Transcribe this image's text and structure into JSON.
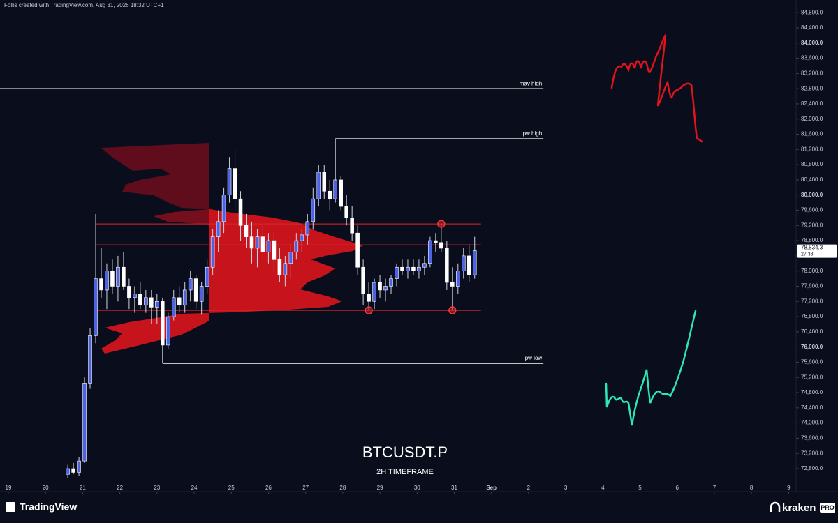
{
  "header": {
    "text": "Follis created with TradingView.com, Aug 31, 2026 18:32 UTC+1"
  },
  "footer": {
    "brand": "TradingView",
    "broker": "kraken",
    "broker_tag": "PRO"
  },
  "chart_data": {
    "type": "candlestick",
    "title": "BTCUSDT.P",
    "subtitle": "2H TIMEFRAME",
    "up_color": "#4c63e6",
    "down_color": "#ffffff",
    "xlim": [
      18.775,
      40.2
    ],
    "ylim": [
      72470,
      84950
    ],
    "x": [
      20.6,
      20.75,
      20.9,
      21.05,
      21.2,
      21.35,
      21.5,
      21.65,
      21.8,
      21.95,
      22.1,
      22.25,
      22.4,
      22.55,
      22.7,
      22.85,
      23.0,
      23.15,
      23.3,
      23.45,
      23.6,
      23.75,
      23.9,
      24.05,
      24.2,
      24.35,
      24.5,
      24.65,
      24.8,
      24.95,
      25.1,
      25.25,
      25.4,
      25.55,
      25.7,
      25.85,
      26.0,
      26.15,
      26.3,
      26.45,
      26.6,
      26.75,
      26.9,
      27.05,
      27.2,
      27.35,
      27.5,
      27.65,
      27.8,
      27.95,
      28.1,
      28.25,
      28.4,
      28.55,
      28.7,
      28.85,
      29.0,
      29.15,
      29.3,
      29.45,
      29.6,
      29.75,
      29.9,
      30.05,
      30.2,
      30.35,
      30.5,
      30.65,
      30.8,
      30.95,
      31.1,
      31.25,
      31.4,
      31.55
    ],
    "open": [
      72650,
      72800,
      72700,
      73000,
      75050,
      76300,
      77800,
      77500,
      78000,
      77600,
      78100,
      77600,
      77300,
      77400,
      77100,
      77300,
      77050,
      77200,
      76050,
      76800,
      77300,
      77100,
      77500,
      77800,
      77200,
      77600,
      78100,
      78900,
      79300,
      80000,
      80700,
      79900,
      79200,
      78900,
      78600,
      78900,
      78500,
      78800,
      78300,
      77900,
      78200,
      78500,
      78800,
      78950,
      79300,
      79900,
      80600,
      80100,
      79900,
      80400,
      79700,
      79400,
      79000,
      78100,
      77400,
      77200,
      77700,
      77500,
      77600,
      77800,
      78100,
      78000,
      78100,
      78000,
      78100,
      78200,
      78800,
      78750,
      78600,
      77700,
      77600,
      78000,
      78400,
      77900
    ],
    "high": [
      72900,
      72950,
      73100,
      75200,
      76500,
      79500,
      78600,
      78200,
      78300,
      78400,
      78500,
      77800,
      77600,
      77700,
      77500,
      77500,
      77400,
      77300,
      76900,
      77500,
      77600,
      77700,
      78000,
      77900,
      77700,
      78300,
      79100,
      79600,
      80200,
      81000,
      81200,
      80100,
      79500,
      79300,
      79100,
      79200,
      79000,
      79000,
      78600,
      78400,
      78700,
      79000,
      79100,
      79500,
      80200,
      80800,
      80800,
      80400,
      81480,
      80500,
      80000,
      79700,
      79200,
      78300,
      77700,
      77800,
      77900,
      77800,
      77900,
      78200,
      78300,
      78300,
      78300,
      78300,
      78400,
      78900,
      79000,
      79240,
      78800,
      78100,
      78200,
      78600,
      78700,
      78900
    ],
    "low": [
      72550,
      72650,
      72600,
      72950,
      74900,
      76100,
      77300,
      77000,
      77400,
      77200,
      77500,
      77000,
      76900,
      77000,
      76900,
      76600,
      76600,
      75570,
      75950,
      76700,
      76900,
      76900,
      77200,
      77000,
      76850,
      77400,
      77900,
      78500,
      79000,
      79800,
      79600,
      78800,
      78600,
      78200,
      78100,
      78300,
      78200,
      78000,
      77700,
      77600,
      77800,
      78300,
      78500,
      78700,
      79100,
      79700,
      79900,
      79600,
      79800,
      79600,
      79200,
      78800,
      77900,
      77100,
      76960,
      77000,
      77300,
      77200,
      77400,
      77600,
      77900,
      77800,
      77900,
      77800,
      77900,
      78100,
      78500,
      78500,
      77500,
      76960,
      77400,
      77800,
      77700,
      77800
    ],
    "close": [
      72800,
      72700,
      73000,
      75050,
      76300,
      77800,
      77500,
      78000,
      77600,
      78100,
      77600,
      77300,
      77400,
      77100,
      77300,
      77050,
      77200,
      76050,
      76800,
      77300,
      77100,
      77500,
      77800,
      77200,
      77600,
      78100,
      78900,
      79300,
      80000,
      80700,
      79900,
      79200,
      78900,
      78600,
      78900,
      78500,
      78800,
      78300,
      77900,
      78200,
      78500,
      78800,
      78950,
      79300,
      79900,
      80600,
      80100,
      79900,
      80400,
      79700,
      79400,
      79000,
      78100,
      77400,
      77200,
      77700,
      77500,
      77600,
      77800,
      78100,
      78000,
      78100,
      78000,
      78100,
      78200,
      78800,
      78750,
      78600,
      77700,
      77600,
      78000,
      78400,
      77900,
      78534.3
    ],
    "xticks": [
      19,
      20,
      21,
      22,
      23,
      24,
      25,
      26,
      27,
      28,
      29,
      30,
      31,
      {
        "value": 32,
        "label": "Sep"
      },
      {
        "value": 33,
        "label": "2"
      },
      {
        "value": 34,
        "label": "3"
      },
      {
        "value": 35,
        "label": "4"
      },
      {
        "value": 36,
        "label": "5"
      },
      {
        "value": 37,
        "label": "6"
      },
      {
        "value": 38,
        "label": "7"
      },
      {
        "value": 39,
        "label": "8"
      },
      {
        "value": 40,
        "label": "9"
      }
    ],
    "yticks": [
      {
        "value": 72800,
        "label": "72,800.0"
      },
      {
        "value": 73200,
        "label": "73,200.0"
      },
      {
        "value": 73600,
        "label": "73,600.0"
      },
      {
        "value": 74000,
        "label": "74,000.0"
      },
      {
        "value": 74400,
        "label": "74,400.0"
      },
      {
        "value": 74800,
        "label": "74,800.0"
      },
      {
        "value": 75200,
        "label": "75,200.0"
      },
      {
        "value": 75600,
        "label": "75,600.0"
      },
      {
        "value": 76000,
        "label": "76,000.0"
      },
      {
        "value": 76400,
        "label": "76,400.0"
      },
      {
        "value": 76800,
        "label": "76,800.0"
      },
      {
        "value": 77200,
        "label": "77,200.0"
      },
      {
        "value": 77600,
        "label": "77,600.0"
      },
      {
        "value": 78000,
        "label": "78,000.0"
      },
      {
        "value": 78400,
        "label": "78,400.0"
      },
      {
        "value": 78800,
        "label": "78,800.0"
      },
      {
        "value": 79200,
        "label": "79,200.0"
      },
      {
        "value": 79600,
        "label": "79,600.0"
      },
      {
        "value": 80000,
        "label": "80,000.0"
      },
      {
        "value": 80400,
        "label": "80,400.0"
      },
      {
        "value": 80800,
        "label": "80,800.0"
      },
      {
        "value": 81200,
        "label": "81,200.0"
      },
      {
        "value": 81600,
        "label": "81,600.0"
      },
      {
        "value": 82000,
        "label": "82,000.0"
      },
      {
        "value": 82400,
        "label": "82,400.0"
      },
      {
        "value": 82800,
        "label": "82,800.0"
      },
      {
        "value": 83200,
        "label": "83,200.0"
      },
      {
        "value": 83600,
        "label": "83,600.0"
      },
      {
        "value": 84000,
        "label": "84,000.0"
      },
      {
        "value": 84400,
        "label": "84,400.0"
      },
      {
        "value": 84800,
        "label": "84,800.0"
      }
    ],
    "last_price": {
      "value": 78534.3,
      "label": "78,534.3",
      "countdown": "27:38"
    },
    "levels": [
      {
        "label": "may high",
        "value": 82800,
        "start": 18.775,
        "end": 33.4,
        "color": "#ffffff"
      },
      {
        "label": "pw high",
        "value": 81480,
        "start": 27.8,
        "end": 33.4,
        "color": "#ffffff"
      },
      {
        "label": "pw low",
        "value": 75570,
        "start": 23.15,
        "end": 33.4,
        "color": "#ffffff"
      }
    ],
    "zones": [
      {
        "value": 79240,
        "start": 21.35,
        "end": 31.72,
        "color": "#e0262b"
      },
      {
        "value": 78690,
        "start": 21.35,
        "end": 31.72,
        "color": "#e0262b"
      },
      {
        "value": 76965,
        "start": 21.35,
        "end": 31.72,
        "color": "#e0262b"
      }
    ],
    "markers": [
      {
        "x": 30.65,
        "y": 79240
      },
      {
        "x": 28.7,
        "y": 76965
      },
      {
        "x": 30.95,
        "y": 76965
      }
    ]
  }
}
